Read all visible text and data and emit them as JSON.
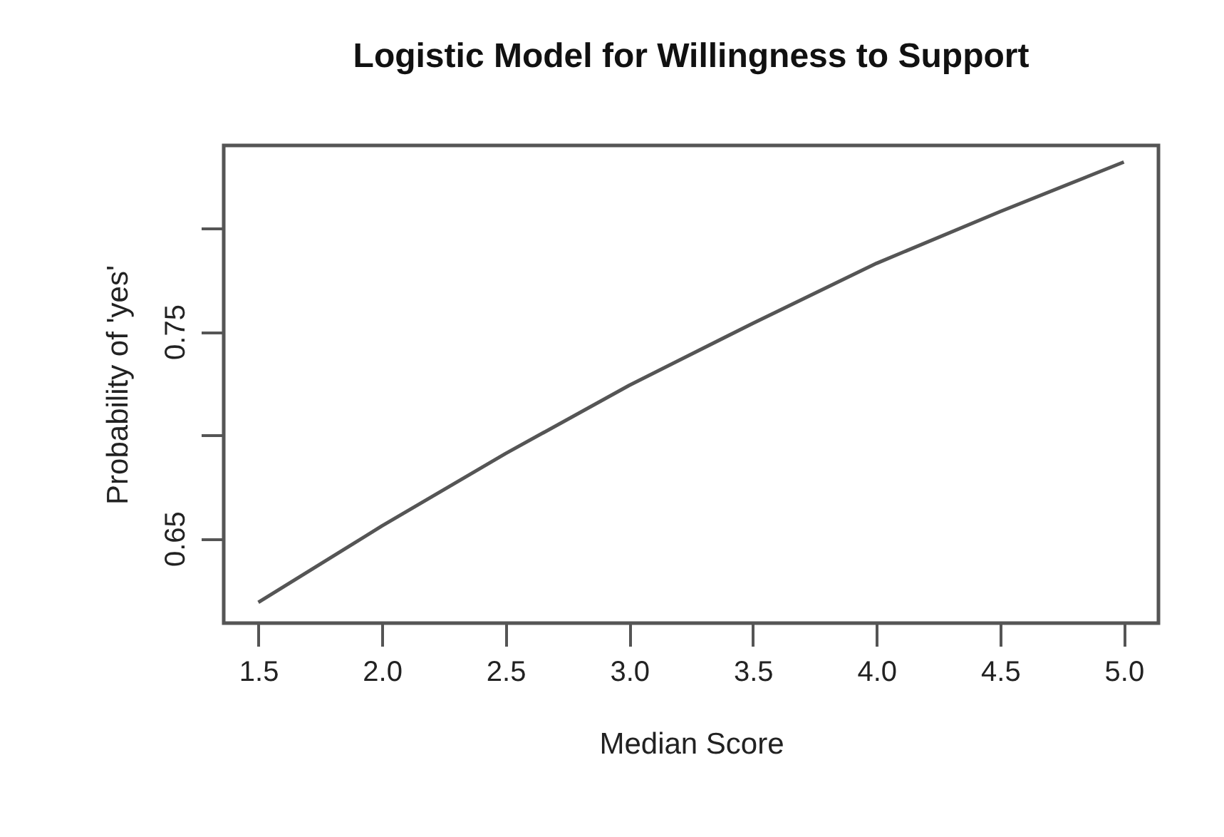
{
  "chart_data": {
    "type": "line",
    "title": "Logistic Model for Willingness to Support",
    "xlabel": "Median Score",
    "ylabel": "Probability of 'yes'",
    "x": [
      1.5,
      2.0,
      2.5,
      3.0,
      3.5,
      4.0,
      4.5,
      5.0
    ],
    "series": [
      {
        "color": "#555555",
        "values": [
          0.619,
          0.656,
          0.691,
          0.724,
          0.754,
          0.783,
          0.808,
          0.832
        ]
      }
    ],
    "xlim": [
      1.36,
      5.14
    ],
    "xticks": [
      {
        "value": 1.5,
        "label": "1.5"
      },
      {
        "value": 2,
        "label": "2.0"
      },
      {
        "value": 2.5,
        "label": "2.5"
      },
      {
        "value": 3,
        "label": "3.0"
      },
      {
        "value": 3.5,
        "label": "3.5"
      },
      {
        "value": 4,
        "label": "4.0"
      },
      {
        "value": 4.5,
        "label": "4.5"
      },
      {
        "value": 5,
        "label": "5.0"
      }
    ],
    "ylim": [
      0.609,
      0.84
    ],
    "yticks": [
      0.65,
      {
        "value": 0.7,
        "label": null
      },
      0.75,
      {
        "value": 0.8,
        "label": null
      }
    ],
    "grid": false,
    "marker": "none",
    "line_style": "solid"
  }
}
